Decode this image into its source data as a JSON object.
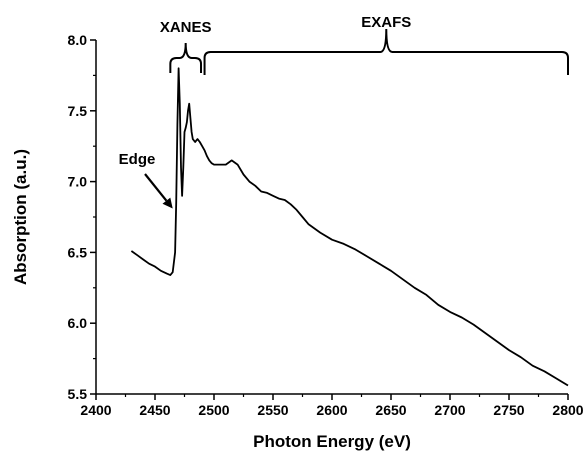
{
  "chart_data": {
    "type": "line",
    "title": "",
    "xlabel": "Photon Energy (eV)",
    "ylabel": "Absorption (a.u.)",
    "xlim": [
      2400,
      2800
    ],
    "ylim": [
      5.5,
      8.0
    ],
    "xticks": [
      2400,
      2450,
      2500,
      2550,
      2600,
      2650,
      2700,
      2750,
      2800
    ],
    "yticks": [
      5.5,
      6.0,
      6.5,
      7.0,
      7.5,
      8.0
    ],
    "xtick_labels": [
      "2400",
      "2450",
      "2500",
      "2550",
      "2600",
      "2650",
      "2700",
      "2750",
      "2800"
    ],
    "ytick_labels": [
      "5.5",
      "6.0",
      "6.5",
      "7.0",
      "7.5",
      "8.0"
    ],
    "grid": false,
    "legend": "none",
    "series": [
      {
        "color": "#000000",
        "x": [
          2430,
          2435,
          2440,
          2445,
          2450,
          2455,
          2460,
          2463,
          2465,
          2467,
          2468,
          2469,
          2470,
          2471,
          2472,
          2473,
          2474,
          2475,
          2476,
          2477,
          2478,
          2479,
          2480,
          2481,
          2482,
          2484,
          2486,
          2488,
          2490,
          2492,
          2494,
          2496,
          2498,
          2500,
          2505,
          2510,
          2515,
          2520,
          2525,
          2530,
          2535,
          2540,
          2545,
          2550,
          2555,
          2560,
          2565,
          2570,
          2575,
          2580,
          2590,
          2600,
          2610,
          2620,
          2630,
          2640,
          2650,
          2660,
          2670,
          2680,
          2690,
          2700,
          2710,
          2720,
          2730,
          2740,
          2750,
          2760,
          2770,
          2780,
          2790,
          2800
        ],
        "y": [
          6.51,
          6.48,
          6.45,
          6.42,
          6.4,
          6.37,
          6.35,
          6.34,
          6.36,
          6.5,
          6.85,
          7.4,
          7.8,
          7.55,
          7.1,
          6.9,
          7.1,
          7.35,
          7.38,
          7.42,
          7.5,
          7.55,
          7.45,
          7.35,
          7.3,
          7.28,
          7.3,
          7.28,
          7.25,
          7.22,
          7.18,
          7.15,
          7.13,
          7.12,
          7.12,
          7.12,
          7.15,
          7.12,
          7.05,
          7.0,
          6.97,
          6.93,
          6.92,
          6.9,
          6.88,
          6.87,
          6.84,
          6.8,
          6.75,
          6.7,
          6.64,
          6.59,
          6.56,
          6.52,
          6.47,
          6.42,
          6.37,
          6.31,
          6.25,
          6.2,
          6.13,
          6.08,
          6.04,
          5.99,
          5.93,
          5.87,
          5.81,
          5.76,
          5.7,
          5.66,
          5.61,
          5.56
        ]
      }
    ],
    "annotations": [
      {
        "text": "XANES",
        "x_range": [
          2463,
          2489
        ]
      },
      {
        "text": "EXAFS",
        "x_range": [
          2492,
          2800
        ]
      },
      {
        "text": "Edge",
        "arrow_to": [
          2465,
          6.81
        ]
      }
    ]
  }
}
